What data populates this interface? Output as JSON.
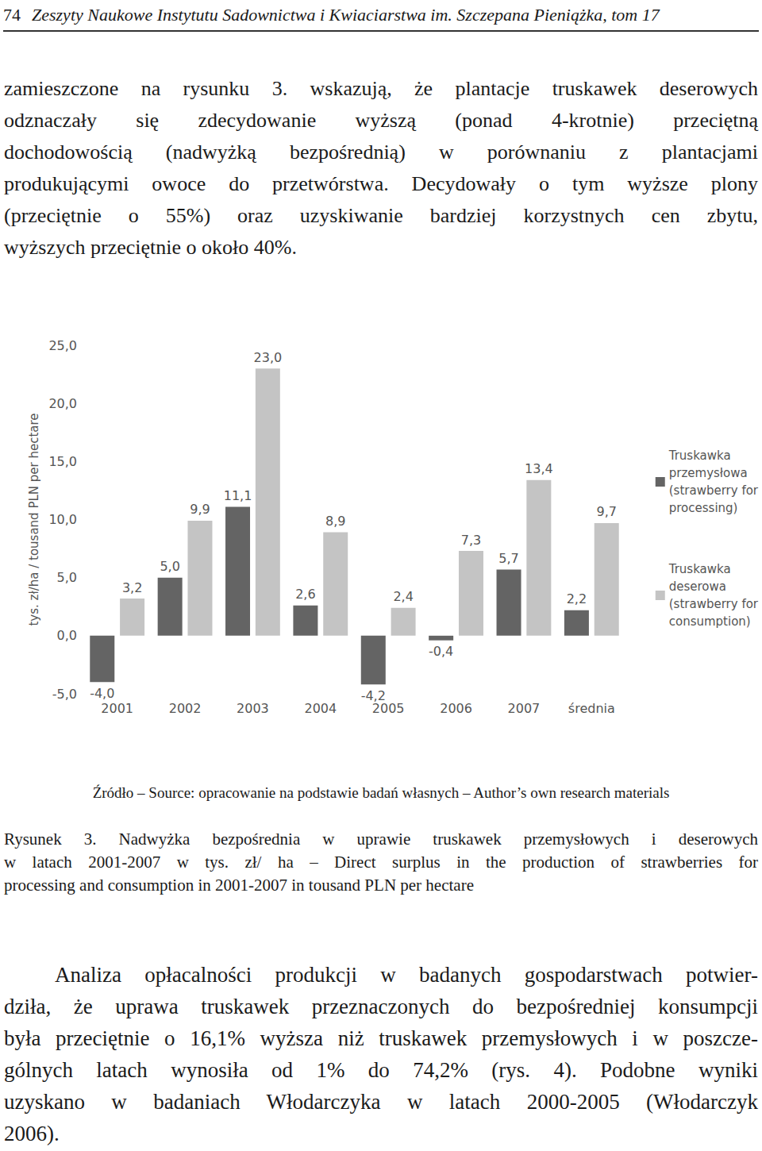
{
  "header": {
    "page_number": "74",
    "journal": "Zeszyty Naukowe Instytutu Sadownictwa i Kwiaciarstwa im. Szczepana Pieniążka, tom 17"
  },
  "intro_paragraph": {
    "lines": [
      "zamieszczone na rysunku 3. wskazują, że plantacje truskawek deserowych",
      "odznaczały się zdecydowanie wyższą (ponad 4-krotnie) przeciętną",
      "dochodowością (nadwyżką bezpośrednią) w porównaniu z plantacjami",
      "produkującymi owoce do przetwórstwa. Decydowały o tym wyższe plony",
      "(przeciętnie o 55%) oraz uzyskiwanie bardziej korzystnych cen zbytu,",
      "wyższych przeciętnie o około 40%."
    ]
  },
  "chart_data": {
    "type": "bar",
    "ylabel": "tys. zł/ha / tousand PLN per hectare",
    "categories": [
      "2001",
      "2002",
      "2003",
      "2004",
      "2005",
      "2006",
      "2007",
      "średnia"
    ],
    "series": [
      {
        "name": "Truskawka\nprzemysłowa\n(strawberry for\nprocessing)",
        "color": "#646464",
        "values": [
          -4.0,
          5.0,
          11.1,
          2.6,
          -4.2,
          -0.4,
          5.7,
          2.2
        ],
        "value_labels": [
          "-4,0",
          "5,0",
          "11,1",
          "2,6",
          "-4,2",
          "-0,4",
          "5,7",
          "2,2"
        ]
      },
      {
        "name": "Truskawka\ndeserowa\n(strawberry for\nconsumption)",
        "color": "#c4c4c4",
        "values": [
          3.2,
          9.9,
          23.0,
          8.9,
          2.4,
          7.3,
          13.4,
          9.7
        ],
        "value_labels": [
          "3,2",
          "9,9",
          "23,0",
          "8,9",
          "2,4",
          "7,3",
          "13,4",
          "9,7"
        ]
      }
    ],
    "ylim": [
      -5,
      25
    ],
    "yticks": [
      {
        "value": -5,
        "label": "-5,0"
      },
      {
        "value": 0,
        "label": "0,0"
      },
      {
        "value": 5,
        "label": "5,0"
      },
      {
        "value": 10,
        "label": "10,0"
      },
      {
        "value": 15,
        "label": "15,0"
      },
      {
        "value": 20,
        "label": "20,0"
      },
      {
        "value": 25,
        "label": "25,0"
      }
    ],
    "grid": false,
    "legend": "right",
    "data_labels": true
  },
  "source": "Źródło – Source: opracowanie na podstawie badań własnych – Author’s own research materials",
  "caption": {
    "lines": [
      "Rysunek 3. Nadwyżka bezpośrednia w uprawie truskawek przemysłowych i deserowych",
      "w latach 2001-2007 w tys. zł/ ha – Direct surplus in the production of strawberries for",
      "processing and consumption in 2001-2007 in tousand PLN per hectare"
    ]
  },
  "closing_paragraph": {
    "lines": [
      "Analiza opłacalności produkcji w badanych gospodarstwach potwier-",
      "dziła, że uprawa truskawek przeznaczonych do bezpośredniej konsumpcji",
      "była przeciętnie o 16,1% wyższa niż truskawek przemysłowych i w poszcze-",
      "gólnych latach wynosiła od 1% do 74,2% (rys. 4). Podobne wyniki",
      "uzyskano w badaniach Włodarczyka w latach 2000-2005 (Włodarczyk",
      "2006)."
    ]
  }
}
